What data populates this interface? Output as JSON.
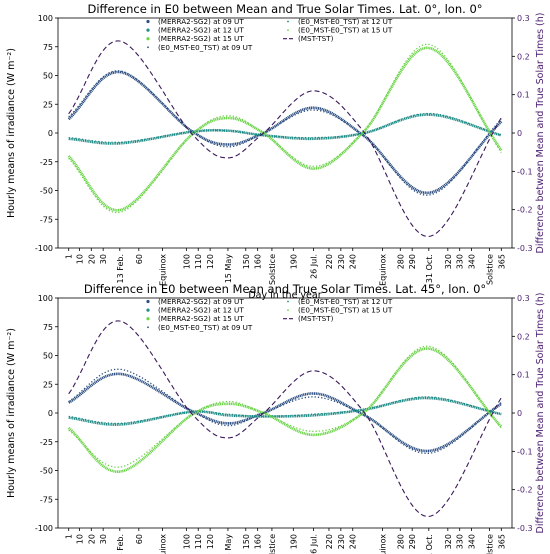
{
  "charts_meta": {
    "xlabel": "Day in the year",
    "ylabel": "Hourly means of irradiance (W m⁻²)",
    "y2label": "Difference between Mean and True Solar Times (h)",
    "x_ticks": [
      {
        "day": 1,
        "label": "1"
      },
      {
        "day": 10,
        "label": "10"
      },
      {
        "day": 20,
        "label": "20"
      },
      {
        "day": 30,
        "label": "30"
      },
      {
        "day": 44,
        "label": "13 Feb."
      },
      {
        "day": 60,
        "label": "60"
      },
      {
        "day": 80,
        "label": "Equinox"
      },
      {
        "day": 100,
        "label": "100"
      },
      {
        "day": 110,
        "label": "110"
      },
      {
        "day": 120,
        "label": "120"
      },
      {
        "day": 135,
        "label": "15 May"
      },
      {
        "day": 150,
        "label": "150"
      },
      {
        "day": 160,
        "label": "160"
      },
      {
        "day": 172,
        "label": "Solstice"
      },
      {
        "day": 190,
        "label": "190"
      },
      {
        "day": 207,
        "label": "26 Jul."
      },
      {
        "day": 220,
        "label": "220"
      },
      {
        "day": 230,
        "label": "230"
      },
      {
        "day": 240,
        "label": "240"
      },
      {
        "day": 265,
        "label": "Equinox"
      },
      {
        "day": 280,
        "label": "280"
      },
      {
        "day": 290,
        "label": "290"
      },
      {
        "day": 304,
        "label": "31 Oct."
      },
      {
        "day": 320,
        "label": "320"
      },
      {
        "day": 330,
        "label": "330"
      },
      {
        "day": 340,
        "label": "340"
      },
      {
        "day": 355,
        "label": "Solstice"
      },
      {
        "day": 365,
        "label": "365"
      }
    ],
    "y_ticks": [
      -100,
      -75,
      -50,
      -25,
      0,
      25,
      50,
      75,
      100
    ],
    "y2_ticks": [
      "-0.3",
      "-0.2",
      "-0.1",
      "0",
      "0.1",
      "0.2",
      "0.3"
    ],
    "legend": [
      {
        "label": "(MERRA2-SG2) at 09 UT",
        "color": "#2d4f82",
        "style": "dot"
      },
      {
        "label": "(MERRA2-SG2) at 12 UT",
        "color": "#1f8c87",
        "style": "dot"
      },
      {
        "label": "(MERRA2-SG2) at 15 UT",
        "color": "#6dd44a",
        "style": "dot"
      },
      {
        "label": "(E0_MST-E0_TST) at 09 UT",
        "color": "#2d4f82",
        "style": "dotted"
      },
      {
        "label": "(E0_MST-E0_TST) at 12 UT",
        "color": "#1f8c87",
        "style": "dotted"
      },
      {
        "label": "(E0_MST-E0_TST) at 15 UT",
        "color": "#6dd44a",
        "style": "dotted"
      },
      {
        "label": "(MST-TST)",
        "color": "#3b1a5a",
        "style": "dashed"
      }
    ],
    "colors": {
      "s09": "#2d4f82",
      "s12": "#1f8c87",
      "s15": "#6dd44a",
      "mst": "#3b1a5a",
      "y2": "#4b1f6f"
    }
  },
  "chart_data": [
    {
      "type": "line",
      "title": "Difference in E0 between Mean and True Solar Times. Lat. 0°, lon. 0°",
      "xlabel": "Day in the year",
      "ylabel": "Hourly means of irradiance (W m⁻²)",
      "y2label": "Difference between Mean and True Solar Times (h)",
      "ylim": [
        -100,
        100
      ],
      "y2lim": [
        -0.3,
        0.3
      ],
      "x": [
        1,
        44,
        104,
        135,
        165,
        207,
        250,
        304,
        365
      ],
      "series": [
        {
          "name": "(MERRA2-SG2) at 09 UT",
          "axis": "left",
          "values": [
            12,
            53,
            2,
            -10,
            0,
            22,
            -3,
            -52,
            10
          ]
        },
        {
          "name": "(MERRA2-SG2) at 12 UT",
          "axis": "left",
          "values": [
            -5,
            -9,
            1,
            2,
            -2,
            -5,
            0,
            16,
            -2
          ]
        },
        {
          "name": "(MERRA2-SG2) at 15 UT",
          "axis": "left",
          "values": [
            -20,
            -67,
            -2,
            13,
            0,
            -31,
            2,
            74,
            -15
          ]
        },
        {
          "name": "(E0_MST-E0_TST) at 09 UT",
          "axis": "left",
          "values": [
            14,
            54,
            2,
            -12,
            0,
            20,
            -3,
            -54,
            12
          ]
        },
        {
          "name": "(E0_MST-E0_TST) at 12 UT",
          "axis": "left",
          "values": [
            -4,
            -8,
            1,
            2,
            -2,
            -4,
            0,
            17,
            -2
          ]
        },
        {
          "name": "(E0_MST-E0_TST) at 15 UT",
          "axis": "left",
          "values": [
            -22,
            -69,
            -2,
            15,
            0,
            -29,
            2,
            77,
            -17
          ]
        },
        {
          "name": "(MST-TST)",
          "axis": "right",
          "values": [
            0.05,
            0.24,
            0.0,
            -0.065,
            0.0,
            0.11,
            0.0,
            -0.27,
            0.04
          ]
        }
      ],
      "grid": false,
      "legend_position": "top-center"
    },
    {
      "type": "line",
      "title": "Difference in E0 between Mean and True Solar Times. Lat. 45°, lon. 0°",
      "xlabel": "Day in the year",
      "ylabel": "Hourly means of irradiance (W m⁻²)",
      "y2label": "Difference between Mean and True Solar Times (h)",
      "ylim": [
        -100,
        100
      ],
      "y2lim": [
        -0.3,
        0.3
      ],
      "x": [
        1,
        44,
        104,
        135,
        165,
        207,
        250,
        304,
        365
      ],
      "series": [
        {
          "name": "(MERRA2-SG2) at 09 UT",
          "axis": "left",
          "values": [
            9,
            34,
            2,
            -9,
            0,
            17,
            -2,
            -33,
            8
          ]
        },
        {
          "name": "(MERRA2-SG2) at 12 UT",
          "axis": "left",
          "values": [
            -4,
            -10,
            1,
            -2,
            -3,
            -2,
            3,
            13,
            -1
          ]
        },
        {
          "name": "(MERRA2-SG2) at 15 UT",
          "axis": "left",
          "values": [
            -13,
            -51,
            -2,
            8,
            0,
            -19,
            1,
            56,
            -12
          ]
        },
        {
          "name": "(E0_MST-E0_TST) at 09 UT",
          "axis": "left",
          "values": [
            10,
            38,
            2,
            -11,
            0,
            14,
            -2,
            -35,
            9
          ]
        },
        {
          "name": "(E0_MST-E0_TST) at 12 UT",
          "axis": "left",
          "values": [
            -3,
            -9,
            1,
            -1,
            -3,
            -1,
            3,
            14,
            -1
          ]
        },
        {
          "name": "(E0_MST-E0_TST) at 15 UT",
          "axis": "left",
          "values": [
            -15,
            -47,
            -2,
            10,
            0,
            -16,
            1,
            58,
            -13
          ]
        },
        {
          "name": "(MST-TST)",
          "axis": "right",
          "values": [
            0.05,
            0.24,
            0.0,
            -0.065,
            0.0,
            0.11,
            0.0,
            -0.27,
            0.04
          ]
        }
      ],
      "grid": false,
      "legend_position": "top-center"
    }
  ]
}
